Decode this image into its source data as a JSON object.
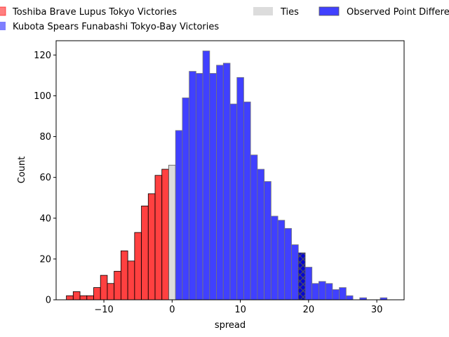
{
  "chart_data": {
    "type": "bar",
    "title": "",
    "xlabel": "spread",
    "ylabel": "Count",
    "xlim": [
      -17,
      34
    ],
    "ylim": [
      0,
      127
    ],
    "xticks": [
      -10,
      0,
      10,
      20,
      30
    ],
    "yticks": [
      0,
      20,
      40,
      60,
      80,
      100,
      120
    ],
    "tick_labels_x": [
      "−10",
      "0",
      "10",
      "20",
      "30"
    ],
    "tick_labels_y": [
      "0",
      "20",
      "40",
      "60",
      "80",
      "100",
      "120"
    ],
    "bin_width": 1,
    "legend": [
      {
        "label": "Toshiba Brave Lupus Tokyo Victories",
        "color": "#ff0000"
      },
      {
        "label": "Kubota Spears Funabashi Tokyo-Bay Victories",
        "color": "#0000ff"
      },
      {
        "label": "Ties",
        "color": "#d3d3d3"
      },
      {
        "label": "Observed Point Differential",
        "color": "#0000ff",
        "hatch": "x"
      }
    ],
    "series": [
      {
        "name": "Toshiba Brave Lupus Tokyo Victories",
        "color": "#ff0000",
        "bins": [
          {
            "x": -15,
            "count": 2
          },
          {
            "x": -14,
            "count": 4
          },
          {
            "x": -13,
            "count": 2
          },
          {
            "x": -12,
            "count": 2
          },
          {
            "x": -11,
            "count": 6
          },
          {
            "x": -10,
            "count": 12
          },
          {
            "x": -9,
            "count": 8
          },
          {
            "x": -8,
            "count": 14
          },
          {
            "x": -7,
            "count": 24
          },
          {
            "x": -6,
            "count": 19
          },
          {
            "x": -5,
            "count": 33
          },
          {
            "x": -4,
            "count": 46
          },
          {
            "x": -3,
            "count": 52
          },
          {
            "x": -2,
            "count": 61
          },
          {
            "x": -1,
            "count": 64
          }
        ]
      },
      {
        "name": "Ties",
        "color": "#d3d3d3",
        "bins": [
          {
            "x": 0,
            "count": 66
          }
        ]
      },
      {
        "name": "Kubota Spears Funabashi Tokyo-Bay Victories",
        "color": "#0000ff",
        "bins": [
          {
            "x": 1,
            "count": 83
          },
          {
            "x": 2,
            "count": 99
          },
          {
            "x": 3,
            "count": 112
          },
          {
            "x": 4,
            "count": 111
          },
          {
            "x": 5,
            "count": 122
          },
          {
            "x": 6,
            "count": 111
          },
          {
            "x": 7,
            "count": 115
          },
          {
            "x": 8,
            "count": 116
          },
          {
            "x": 9,
            "count": 96
          },
          {
            "x": 10,
            "count": 109
          },
          {
            "x": 11,
            "count": 97
          },
          {
            "x": 12,
            "count": 71
          },
          {
            "x": 13,
            "count": 64
          },
          {
            "x": 14,
            "count": 58
          },
          {
            "x": 15,
            "count": 41
          },
          {
            "x": 16,
            "count": 39
          },
          {
            "x": 17,
            "count": 35
          },
          {
            "x": 18,
            "count": 27
          },
          {
            "x": 19,
            "count": 23
          },
          {
            "x": 20,
            "count": 16
          },
          {
            "x": 21,
            "count": 8
          },
          {
            "x": 22,
            "count": 9
          },
          {
            "x": 23,
            "count": 8
          },
          {
            "x": 24,
            "count": 5
          },
          {
            "x": 25,
            "count": 6
          },
          {
            "x": 26,
            "count": 2
          },
          {
            "x": 28,
            "count": 1
          },
          {
            "x": 31,
            "count": 1
          }
        ]
      }
    ],
    "observed": {
      "name": "Observed Point Differential",
      "x": 19,
      "count": 23
    }
  }
}
